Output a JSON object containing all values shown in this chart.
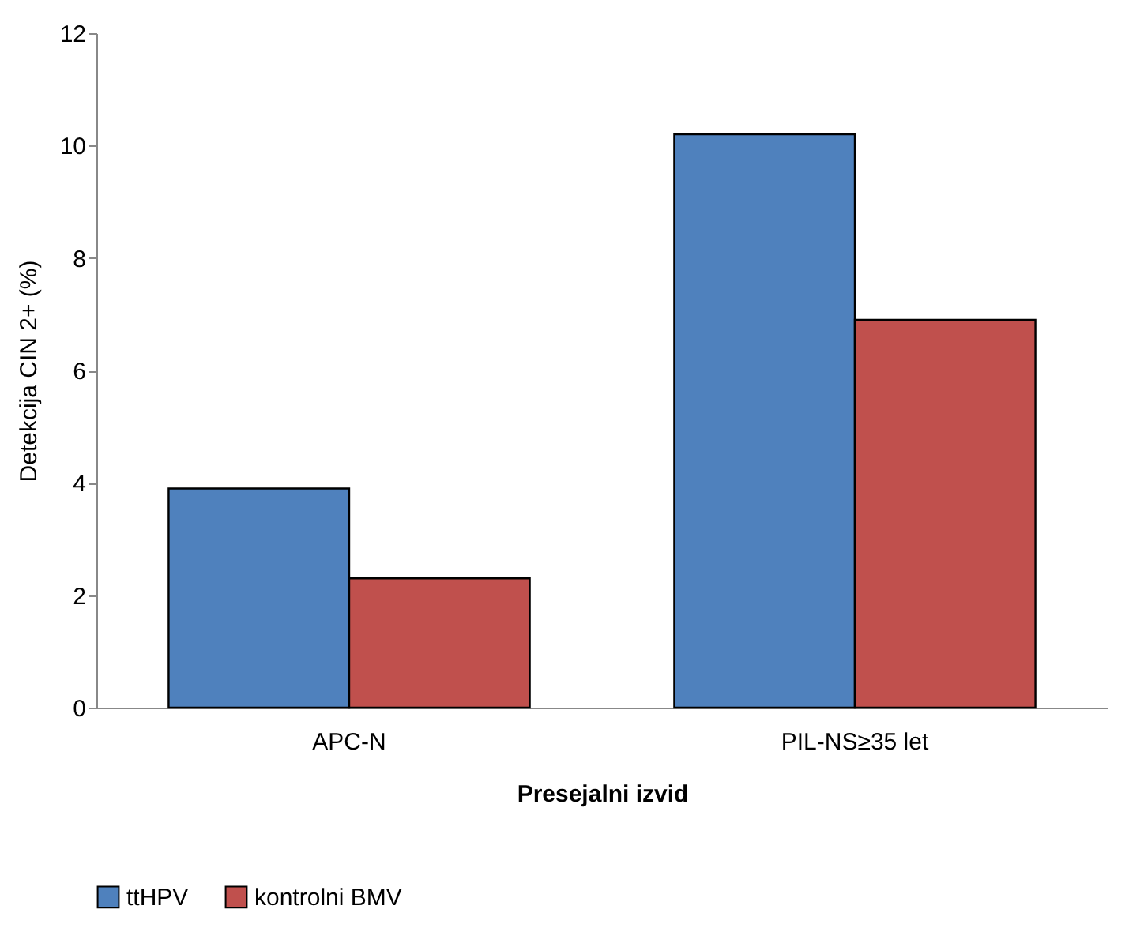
{
  "chart_data": {
    "type": "bar",
    "xlabel": "Presejalni izvid",
    "ylabel": "Detekcija CIN 2+ (%)",
    "categories": [
      "APC-N",
      "PIL-NS≥35 let"
    ],
    "series": [
      {
        "name": "ttHPV",
        "color": "#4f81bd",
        "values": [
          3.9,
          10.2
        ]
      },
      {
        "name": "kontrolni BMV",
        "color": "#c0504d",
        "values": [
          2.3,
          6.9
        ]
      }
    ],
    "ylim": [
      0,
      12
    ],
    "yticks": [
      0,
      2,
      4,
      6,
      8,
      10,
      12
    ],
    "grid": false,
    "legend": "bottom"
  }
}
